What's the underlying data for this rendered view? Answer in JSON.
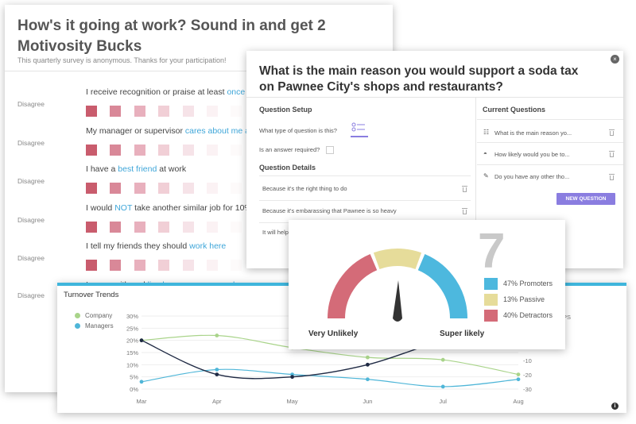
{
  "survey": {
    "title": "How's it going at work? Sound in and get 2 Motivosity Bucks",
    "subtitle": "This quarterly survey is anonymous. Thanks for your participation!",
    "scale_left_label": "Disagree",
    "questions": [
      {
        "pre": "I receive recognition or praise at least ",
        "hl": "once a",
        "post": ""
      },
      {
        "pre": "My manager or supervisor ",
        "hl": "cares about me a",
        "post": ""
      },
      {
        "pre": "I have a ",
        "hl": "best friend",
        "post": " at work"
      },
      {
        "pre": "I would ",
        "hl": "NOT",
        "post": " take another similar job for 10%"
      },
      {
        "pre": "I tell my friends they should ",
        "hl": "work here",
        "post": ""
      },
      {
        "pre": "I agree with and ",
        "hl": "live by our company values",
        "post": ""
      }
    ],
    "scale_colors": [
      "#c95c6d",
      "#d98898",
      "#e8b0bd",
      "#f1cfd6",
      "#f6e3e8",
      "#fbf2f4",
      "#fdfafa",
      "#e6e04a"
    ]
  },
  "editor": {
    "question_title": "What is the main reason you would support a soda tax on Pawnee City's shops and restaurants?",
    "setup_heading": "Question Setup",
    "type_label": "What type of question is this?",
    "required_label": "Is an answer required?",
    "details_heading": "Question Details",
    "options": [
      "Because it's the right thing to do",
      "Because it's embarassing that Pawnee is so heavy",
      "It will help"
    ],
    "current_heading": "Current Questions",
    "current_questions": [
      {
        "icon": "list-icon",
        "text": "What is the main reason yo..."
      },
      {
        "icon": "gauge-icon",
        "text": "How likely would you be to..."
      },
      {
        "icon": "edit-icon",
        "text": "Do you have any other tho..."
      }
    ],
    "new_question_label": "NEW QUESTION",
    "close_glyph": "×"
  },
  "nps": {
    "score": "7",
    "left_label": "Very Unlikely",
    "right_label": "Super likely",
    "legend": [
      {
        "label": "47% Promoters",
        "color": "#4db8de"
      },
      {
        "label": "13% Passive",
        "color": "#e6dc9a"
      },
      {
        "label": "40% Detractors",
        "color": "#d46b78"
      }
    ],
    "colors": {
      "detractor": "#d46b78",
      "passive": "#e6dc9a",
      "promoter": "#4db8de",
      "needle": "#333333"
    }
  },
  "turnover": {
    "title": "Turnover Trends",
    "legend": [
      {
        "label": "Company",
        "color": "#a9d48a"
      },
      {
        "label": "Managers",
        "color": "#4fb6d8"
      }
    ],
    "right_axis_fragment": "PS",
    "info_glyph": "i"
  },
  "chart_data": {
    "type": "line",
    "title": "Turnover Trends",
    "categories": [
      "Mar",
      "Apr",
      "May",
      "Jun",
      "Jul",
      "Aug"
    ],
    "left_ticks": [
      "30%",
      "25%",
      "20%",
      "15%",
      "10%",
      "5%",
      "0%"
    ],
    "right_ticks": [
      "10",
      "0",
      "-10",
      "-20",
      "-30"
    ],
    "ylim": [
      0,
      30
    ],
    "y2lim": [
      -30,
      10
    ],
    "series": [
      {
        "name": "Company",
        "axis": "left",
        "color": "#a9d48a",
        "values": [
          20,
          22,
          17,
          13,
          12,
          6
        ]
      },
      {
        "name": "Managers",
        "axis": "left",
        "color": "#4fb6d8",
        "values": [
          3,
          8,
          6,
          4,
          1,
          4
        ]
      },
      {
        "name": "",
        "axis": "left",
        "color": "#1f2a44",
        "values": [
          20,
          6,
          5,
          10,
          20,
          27
        ]
      }
    ]
  }
}
